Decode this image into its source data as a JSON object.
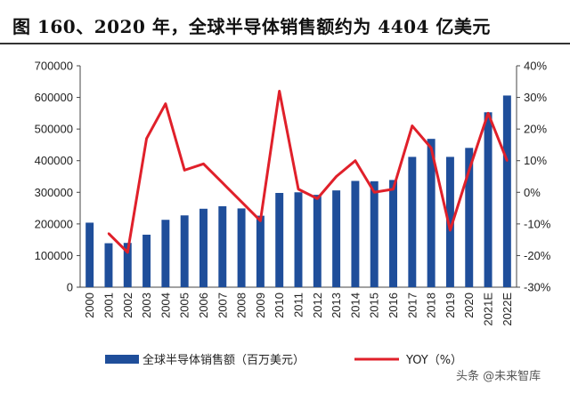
{
  "title": "图 160、2020 年，全球半导体销售额约为 4404 亿美元",
  "watermark": "头条 @未来智库",
  "chart_data": {
    "type": "bar",
    "categories": [
      "2000",
      "2001",
      "2002",
      "2003",
      "2004",
      "2005",
      "2006",
      "2007",
      "2008",
      "2009",
      "2010",
      "2011",
      "2012",
      "2013",
      "2014",
      "2015",
      "2016",
      "2017",
      "2018",
      "2019",
      "2020",
      "2021E",
      "2022E"
    ],
    "series": [
      {
        "name": "全球半导体销售额（百万美元）",
        "type": "bar",
        "axis": "left",
        "color": "#1F4E9A",
        "values": [
          204000,
          139000,
          140000,
          166000,
          213000,
          227000,
          248000,
          256000,
          249000,
          226000,
          298000,
          300000,
          292000,
          306000,
          336000,
          335000,
          339000,
          412000,
          469000,
          412000,
          440400,
          553000,
          606000
        ]
      },
      {
        "name": "YOY（%）",
        "type": "line",
        "axis": "right",
        "color": "#E0202A",
        "values": [
          null,
          -13,
          -19,
          17,
          28,
          7,
          9,
          3,
          -3,
          -9,
          32,
          1,
          -2,
          5,
          10,
          0,
          1,
          21,
          14,
          -12,
          7,
          25,
          10
        ]
      }
    ],
    "y_left": {
      "ticks": [
        "0",
        "100000",
        "200000",
        "300000",
        "400000",
        "500000",
        "600000",
        "700000"
      ],
      "ylim": [
        0,
        700000
      ]
    },
    "y_right": {
      "ticks": [
        "-30%",
        "-20%",
        "-10%",
        "0%",
        "10%",
        "20%",
        "30%",
        "40%"
      ],
      "ylim": [
        -30,
        40
      ]
    },
    "grid": false,
    "legend": "bottom"
  }
}
